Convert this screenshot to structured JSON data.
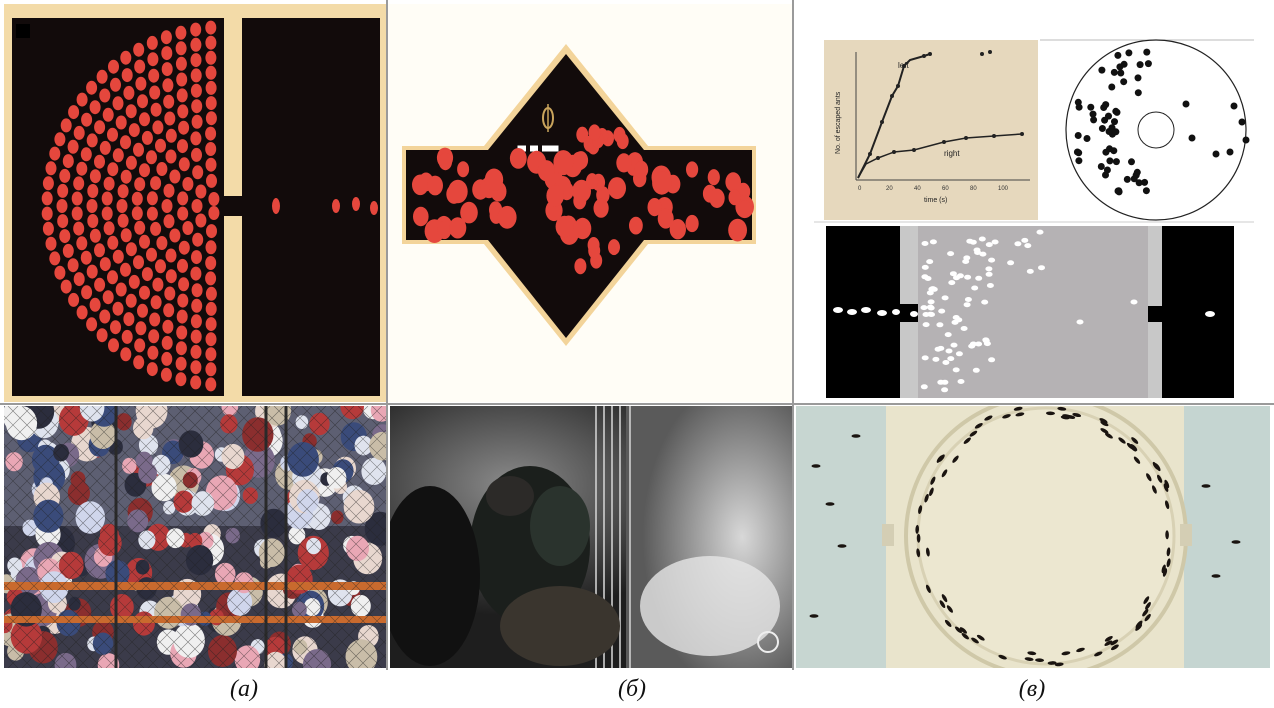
{
  "captions": [
    "(a)",
    "(б)",
    "(в)"
  ],
  "plot": {
    "series_left_label": "left",
    "series_right_label": "right",
    "xlabel": "time (s)",
    "ylabel": "No. of escaped ants"
  },
  "colors": {
    "red_disc": "#e5473d",
    "dark_bg": "#0f0a0a",
    "frame_tan": "#f2d7a2",
    "ant_arena": "#e8e2c8"
  }
}
